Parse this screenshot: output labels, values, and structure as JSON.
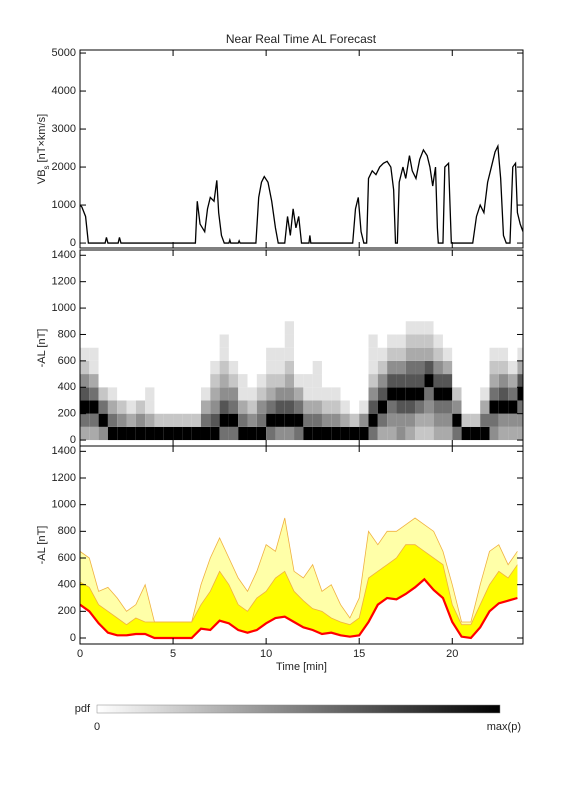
{
  "chart_data": [
    {
      "type": "line",
      "title": "Near Real Time AL Forecast",
      "ylabel": "VB",
      "ylabel_sub": "s",
      "ylabel_unit": "[nT×km/s]",
      "xlim": [
        0,
        23.8
      ],
      "xticks": [
        0,
        5,
        10,
        15,
        20
      ],
      "ylim": [
        -130,
        5080
      ],
      "yticks": [
        0,
        1000,
        2000,
        3000,
        4000,
        5000
      ],
      "x": [
        0,
        0.1,
        0.3,
        0.45,
        1.35,
        1.42,
        1.5,
        2.05,
        2.12,
        2.2,
        6.2,
        6.3,
        6.45,
        6.7,
        6.85,
        7.0,
        7.2,
        7.35,
        7.45,
        7.6,
        7.75,
        8.0,
        8.05,
        8.1,
        8.5,
        8.55,
        8.6,
        9.45,
        9.6,
        9.75,
        9.9,
        10.1,
        10.3,
        10.5,
        10.65,
        11.0,
        11.15,
        11.3,
        11.45,
        11.6,
        11.75,
        11.9,
        12.3,
        12.35,
        12.4,
        14.65,
        14.8,
        14.95,
        15.1,
        15.25,
        15.4,
        15.5,
        15.7,
        15.9,
        16.1,
        16.3,
        16.5,
        16.7,
        16.85,
        16.95,
        17.05,
        17.15,
        17.35,
        17.5,
        17.7,
        17.85,
        18.05,
        18.25,
        18.45,
        18.65,
        18.8,
        18.95,
        19.1,
        19.2,
        19.25,
        19.5,
        19.6,
        19.8,
        19.95,
        21.1,
        21.3,
        21.5,
        21.7,
        21.9,
        22.1,
        22.3,
        22.45,
        22.6,
        22.75,
        22.9,
        23.1,
        23.25,
        23.4,
        23.5,
        23.65,
        23.8
      ],
      "series": [
        {
          "color": "#000000",
          "values": [
            1000,
            950,
            700,
            0,
            0,
            150,
            0,
            0,
            150,
            0,
            0,
            1100,
            500,
            300,
            900,
            1200,
            1100,
            1650,
            800,
            200,
            0,
            0,
            80,
            0,
            0,
            60,
            0,
            0,
            1200,
            1600,
            1750,
            1600,
            1100,
            400,
            0,
            0,
            700,
            200,
            900,
            400,
            700,
            0,
            0,
            200,
            0,
            0,
            900,
            1200,
            300,
            0,
            0,
            1700,
            1900,
            1800,
            2000,
            2100,
            2150,
            2000,
            1400,
            0,
            0,
            1600,
            2000,
            1700,
            2300,
            1900,
            1700,
            2200,
            2450,
            2300,
            2000,
            1500,
            2000,
            400,
            0,
            0,
            2000,
            2100,
            0,
            0,
            700,
            1000,
            800,
            1600,
            2000,
            2400,
            2550,
            1700,
            200,
            0,
            0,
            2000,
            2100,
            800,
            500,
            300
          ]
        }
      ]
    },
    {
      "type": "heatmap",
      "ylabel": "-AL [nT]",
      "xlim": [
        0,
        23.8
      ],
      "xticks": [
        0,
        5,
        10,
        15,
        20
      ],
      "ylim": [
        -45,
        1440
      ],
      "yticks": [
        0,
        200,
        400,
        600,
        800,
        1000,
        1200,
        1400
      ],
      "xbins": [
        0,
        0.5,
        1,
        1.5,
        2,
        2.5,
        3,
        3.5,
        4,
        4.5,
        5,
        5.5,
        6,
        6.5,
        7,
        7.5,
        8,
        8.5,
        9,
        9.5,
        10,
        10.5,
        11,
        11.5,
        12,
        12.5,
        13,
        13.5,
        14,
        14.5,
        15,
        15.5,
        16,
        16.5,
        17,
        17.5,
        18,
        18.5,
        19,
        19.5,
        20,
        20.5,
        21,
        21.5,
        22,
        22.5,
        23,
        23.5,
        24
      ],
      "ybins": [
        0,
        100,
        200,
        300,
        400,
        500,
        600,
        700,
        800,
        900
      ],
      "z": [
        [
          3,
          5,
          9,
          6,
          4,
          2,
          1,
          0,
          0
        ],
        [
          3,
          5,
          9,
          5,
          3,
          1,
          1,
          0,
          0
        ],
        [
          4,
          9,
          5,
          2,
          0,
          0,
          0,
          0,
          0
        ],
        [
          9,
          5,
          3,
          1,
          0,
          0,
          0,
          0,
          0
        ],
        [
          9,
          4,
          2,
          0,
          0,
          0,
          0,
          0,
          0
        ],
        [
          9,
          3,
          1,
          0,
          0,
          0,
          0,
          0,
          0
        ],
        [
          9,
          4,
          2,
          0,
          0,
          0,
          0,
          0,
          0
        ],
        [
          9,
          3,
          1,
          1,
          0,
          0,
          0,
          0,
          0
        ],
        [
          9,
          2,
          0,
          0,
          0,
          0,
          0,
          0,
          0
        ],
        [
          9,
          2,
          0,
          0,
          0,
          0,
          0,
          0,
          0
        ],
        [
          9,
          2,
          0,
          0,
          0,
          0,
          0,
          0,
          0
        ],
        [
          9,
          2,
          0,
          0,
          0,
          0,
          0,
          0,
          0
        ],
        [
          9,
          2,
          0,
          0,
          0,
          0,
          0,
          0,
          0
        ],
        [
          9,
          5,
          3,
          1,
          0,
          0,
          0,
          0,
          0
        ],
        [
          9,
          6,
          4,
          3,
          2,
          1,
          0,
          0,
          0
        ],
        [
          5,
          9,
          6,
          4,
          3,
          2,
          1,
          1,
          0
        ],
        [
          5,
          9,
          5,
          4,
          2,
          1,
          0,
          0,
          0
        ],
        [
          9,
          5,
          3,
          1,
          1,
          0,
          0,
          0,
          0
        ],
        [
          9,
          4,
          2,
          1,
          0,
          0,
          0,
          0,
          0
        ],
        [
          9,
          5,
          4,
          2,
          1,
          0,
          0,
          0,
          0
        ],
        [
          5,
          9,
          5,
          3,
          2,
          1,
          1,
          0,
          0
        ],
        [
          4,
          9,
          6,
          4,
          2,
          1,
          1,
          0,
          0
        ],
        [
          4,
          9,
          6,
          4,
          3,
          2,
          1,
          1,
          1
        ],
        [
          5,
          9,
          5,
          3,
          1,
          0,
          0,
          0,
          0
        ],
        [
          9,
          5,
          3,
          1,
          1,
          0,
          0,
          0,
          0
        ],
        [
          9,
          5,
          3,
          1,
          1,
          1,
          0,
          0,
          0
        ],
        [
          9,
          4,
          2,
          1,
          0,
          0,
          0,
          0,
          0
        ],
        [
          9,
          4,
          2,
          1,
          0,
          0,
          0,
          0,
          0
        ],
        [
          9,
          3,
          1,
          0,
          0,
          0,
          0,
          0,
          0
        ],
        [
          9,
          2,
          0,
          0,
          0,
          0,
          0,
          0,
          0
        ],
        [
          9,
          4,
          1,
          0,
          0,
          0,
          0,
          0,
          0
        ],
        [
          5,
          9,
          6,
          4,
          2,
          1,
          1,
          1,
          0
        ],
        [
          3,
          5,
          9,
          6,
          4,
          2,
          1,
          0,
          0
        ],
        [
          3,
          4,
          5,
          9,
          6,
          4,
          2,
          1,
          0
        ],
        [
          4,
          4,
          6,
          9,
          6,
          4,
          2,
          1,
          0
        ],
        [
          3,
          4,
          6,
          9,
          6,
          5,
          3,
          2,
          1
        ],
        [
          2,
          3,
          5,
          9,
          6,
          5,
          3,
          2,
          1
        ],
        [
          2,
          3,
          4,
          5,
          9,
          6,
          3,
          2,
          1
        ],
        [
          3,
          4,
          5,
          9,
          6,
          4,
          2,
          1,
          0
        ],
        [
          3,
          4,
          5,
          9,
          6,
          3,
          1,
          0,
          0
        ],
        [
          5,
          9,
          4,
          2,
          0,
          0,
          0,
          0,
          0
        ],
        [
          9,
          2,
          0,
          0,
          0,
          0,
          0,
          0,
          0
        ],
        [
          9,
          2,
          0,
          0,
          0,
          0,
          0,
          0,
          0
        ],
        [
          9,
          5,
          3,
          1,
          0,
          0,
          0,
          0,
          0
        ],
        [
          4,
          5,
          9,
          5,
          3,
          2,
          1,
          0,
          0
        ],
        [
          3,
          4,
          9,
          6,
          4,
          2,
          1,
          0,
          0
        ],
        [
          3,
          4,
          9,
          5,
          3,
          1,
          0,
          0,
          0
        ],
        [
          3,
          4,
          5,
          9,
          6,
          3,
          1,
          0,
          0
        ]
      ]
    },
    {
      "type": "band",
      "ylabel": "-AL [nT]",
      "xlabel": "Time [min]",
      "xtick_labels": true,
      "band_base": 0,
      "xlim": [
        0,
        23.8
      ],
      "xticks": [
        0,
        5,
        10,
        15,
        20
      ],
      "ylim": [
        -45,
        1440
      ],
      "yticks": [
        0,
        200,
        400,
        600,
        800,
        1000,
        1200,
        1400
      ],
      "x": [
        0,
        0.5,
        1,
        1.5,
        2,
        2.5,
        3,
        3.5,
        4,
        4.5,
        5,
        5.5,
        6,
        6.5,
        7,
        7.5,
        8,
        8.5,
        9,
        9.5,
        10,
        10.5,
        11,
        11.5,
        12,
        12.5,
        13,
        13.5,
        14,
        14.5,
        15,
        15.5,
        16,
        16.5,
        17,
        17.5,
        18,
        18.5,
        19,
        19.5,
        20,
        20.5,
        21,
        21.5,
        22,
        22.5,
        23,
        23.5
      ],
      "series": [
        {
          "color": "#ff0000",
          "values": [
            250,
            200,
            110,
            40,
            20,
            20,
            30,
            30,
            0,
            0,
            0,
            0,
            0,
            70,
            60,
            130,
            110,
            60,
            40,
            60,
            110,
            150,
            160,
            120,
            80,
            60,
            30,
            40,
            20,
            10,
            20,
            120,
            250,
            300,
            290,
            330,
            380,
            440,
            360,
            300,
            120,
            10,
            0,
            80,
            200,
            260,
            280,
            300
          ]
        },
        {
          "color": "#f0b040",
          "fill": "#ffff00",
          "values": [
            420,
            380,
            250,
            200,
            150,
            100,
            150,
            120,
            120,
            120,
            120,
            120,
            120,
            250,
            350,
            500,
            400,
            250,
            200,
            300,
            350,
            450,
            500,
            350,
            280,
            220,
            200,
            150,
            120,
            100,
            150,
            450,
            500,
            550,
            600,
            700,
            700,
            650,
            600,
            550,
            250,
            100,
            100,
            250,
            400,
            500,
            450,
            550
          ]
        },
        {
          "color": "#f0b040",
          "fill": "#ffffa8",
          "values": [
            650,
            600,
            350,
            380,
            300,
            200,
            250,
            400,
            120,
            120,
            120,
            120,
            120,
            400,
            600,
            750,
            600,
            450,
            350,
            500,
            700,
            650,
            900,
            500,
            450,
            550,
            350,
            400,
            250,
            150,
            300,
            800,
            700,
            800,
            800,
            850,
            900,
            850,
            800,
            650,
            400,
            120,
            120,
            400,
            650,
            700,
            550,
            650
          ]
        }
      ]
    }
  ],
  "colorbar": {
    "label": "pdf",
    "min_label": "0",
    "max_label": "max(p)"
  }
}
